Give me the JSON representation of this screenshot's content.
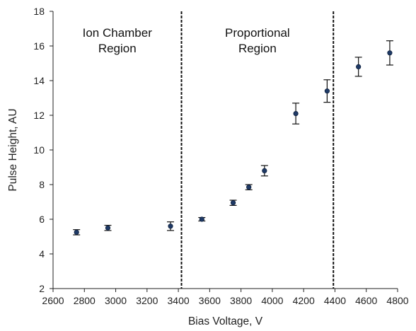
{
  "chart_data": {
    "type": "scatter",
    "xlabel": "Bias Voltage, V",
    "ylabel": "Pulse Height, AU",
    "xlim": [
      2600,
      4800
    ],
    "ylim": [
      2,
      18
    ],
    "x_ticks": [
      2600,
      2800,
      3000,
      3200,
      3400,
      3600,
      3800,
      4000,
      4200,
      4400,
      4600,
      4800
    ],
    "y_ticks": [
      2,
      4,
      6,
      8,
      10,
      12,
      14,
      16,
      18
    ],
    "grid": false,
    "points": [
      {
        "x": 2750,
        "y": 5.25,
        "err": 0.15
      },
      {
        "x": 2950,
        "y": 5.5,
        "err": 0.15
      },
      {
        "x": 3350,
        "y": 5.6,
        "err": 0.25
      },
      {
        "x": 3550,
        "y": 6.0,
        "err": 0.1
      },
      {
        "x": 3750,
        "y": 6.95,
        "err": 0.15
      },
      {
        "x": 3850,
        "y": 7.85,
        "err": 0.15
      },
      {
        "x": 3950,
        "y": 8.8,
        "err": 0.3
      },
      {
        "x": 4150,
        "y": 12.1,
        "err": 0.6
      },
      {
        "x": 4350,
        "y": 13.4,
        "err": 0.65
      },
      {
        "x": 4550,
        "y": 14.8,
        "err": 0.55
      },
      {
        "x": 4750,
        "y": 15.6,
        "err": 0.7
      }
    ],
    "vertical_lines": [
      3420,
      4390
    ],
    "regions": [
      {
        "label_lines": [
          "Ion Chamber",
          "Region"
        ],
        "x_center": 3010
      },
      {
        "label_lines": [
          "Proportional",
          "Region"
        ],
        "x_center": 3905
      }
    ],
    "colors": {
      "point": "#1f3a66",
      "errorbar": "#111111",
      "axis": "#222222"
    }
  }
}
